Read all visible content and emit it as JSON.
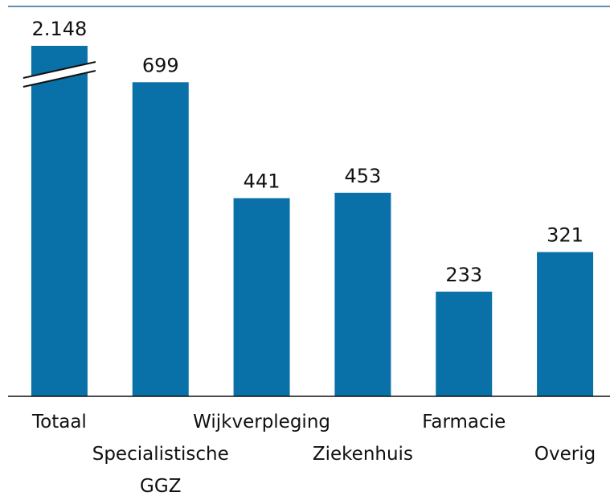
{
  "chart_data": {
    "type": "bar",
    "categories": [
      "Totaal",
      "Specialistische GGZ",
      "Wijkverpleging",
      "Ziekenhuis",
      "Farmacie",
      "Overig"
    ],
    "values": [
      2148,
      699,
      441,
      453,
      233,
      321
    ],
    "value_labels": [
      "2.148",
      "699",
      "441",
      "453",
      "233",
      "321"
    ],
    "color": "#0a70a8",
    "ylim": [
      0,
      780
    ]
  }
}
